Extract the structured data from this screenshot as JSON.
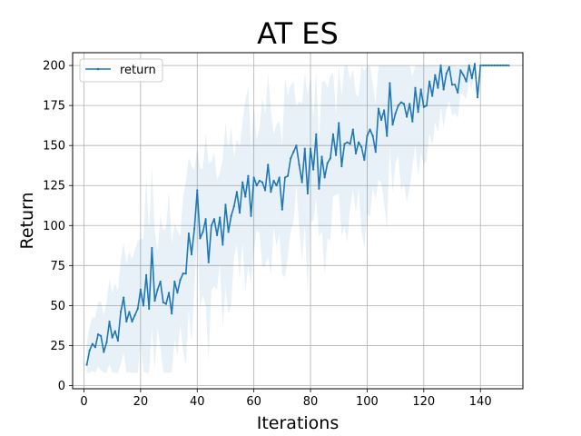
{
  "chart_data": {
    "type": "line",
    "title": "AT ES",
    "xlabel": "Iterations",
    "ylabel": "Return",
    "xlim": [
      -4,
      155
    ],
    "ylim": [
      -2,
      208
    ],
    "xticks": [
      0,
      20,
      40,
      60,
      80,
      100,
      120,
      140
    ],
    "yticks": [
      0,
      25,
      50,
      75,
      100,
      125,
      150,
      175,
      200
    ],
    "grid": true,
    "legend_position": "upper-left",
    "colors": {
      "line": "#1f77b4",
      "band": "#1f77b4",
      "grid": "#b0b0b0"
    },
    "series": [
      {
        "name": "return",
        "x": [
          1,
          2,
          3,
          4,
          5,
          6,
          7,
          8,
          9,
          10,
          11,
          12,
          13,
          14,
          15,
          16,
          17,
          18,
          19,
          20,
          21,
          22,
          23,
          24,
          25,
          26,
          27,
          28,
          29,
          30,
          31,
          32,
          33,
          34,
          35,
          36,
          37,
          38,
          39,
          40,
          41,
          42,
          43,
          44,
          45,
          46,
          47,
          48,
          49,
          50,
          51,
          52,
          53,
          54,
          55,
          56,
          57,
          58,
          59,
          60,
          61,
          62,
          63,
          64,
          65,
          66,
          67,
          68,
          69,
          70,
          71,
          72,
          73,
          74,
          75,
          76,
          77,
          78,
          79,
          80,
          81,
          82,
          83,
          84,
          85,
          86,
          87,
          88,
          89,
          90,
          91,
          92,
          93,
          94,
          95,
          96,
          97,
          98,
          99,
          100,
          101,
          102,
          103,
          104,
          105,
          106,
          107,
          108,
          109,
          110,
          111,
          112,
          113,
          114,
          115,
          116,
          117,
          118,
          119,
          120,
          121,
          122,
          123,
          124,
          125,
          126,
          127,
          128,
          129,
          130,
          131,
          132,
          133,
          134,
          135,
          136,
          137,
          138,
          139,
          140,
          141,
          142,
          143,
          144,
          145,
          146,
          147,
          148,
          149,
          150
        ],
        "y": [
          13,
          22,
          26,
          24,
          32,
          31,
          21,
          27,
          40,
          30,
          34,
          28,
          46,
          55,
          40,
          46,
          40,
          44,
          48,
          60,
          50,
          69,
          48,
          86,
          53,
          60,
          65,
          52,
          51,
          58,
          45,
          65,
          58,
          66,
          70,
          70,
          95,
          82,
          98,
          122,
          92,
          96,
          104,
          77,
          100,
          104,
          94,
          105,
          88,
          113,
          96,
          106,
          112,
          121,
          108,
          127,
          118,
          131,
          106,
          130,
          125,
          128,
          127,
          122,
          138,
          121,
          128,
          125,
          130,
          110,
          130,
          131,
          142,
          146,
          150,
          138,
          127,
          148,
          120,
          148,
          135,
          157,
          123,
          143,
          130,
          139,
          142,
          157,
          144,
          164,
          137,
          151,
          152,
          151,
          160,
          145,
          152,
          149,
          141,
          156,
          160,
          156,
          146,
          173,
          166,
          172,
          156,
          189,
          163,
          170,
          175,
          177,
          176,
          168,
          176,
          165,
          186,
          171,
          185,
          174,
          175,
          190,
          181,
          194,
          186,
          200,
          185,
          195,
          199,
          188,
          188,
          183,
          197,
          194,
          190,
          200,
          192,
          201,
          180,
          200,
          200,
          200,
          200,
          200,
          200,
          200,
          200,
          200,
          200,
          200
        ]
      }
    ]
  }
}
